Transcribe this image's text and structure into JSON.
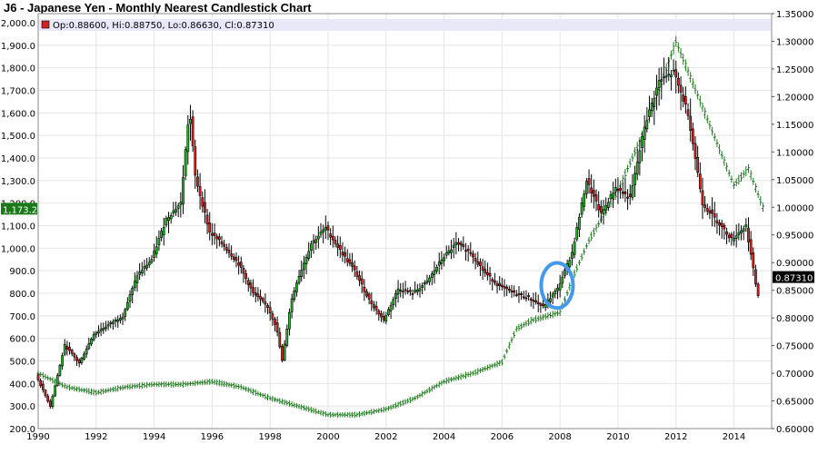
{
  "title": "J6 - Japanese Yen - Monthly Nearest Candlestick Chart",
  "legend": {
    "text": "Op:0.88600, Hi:0.88750, Lo:0.86630, Cl:0.87310",
    "swatch_color": "#cc2222"
  },
  "colors": {
    "up": "#22bb22",
    "down": "#dd2222",
    "overlay": "#1f7a1f",
    "highlight": "#4499ee",
    "left_marker_bg": "#1a7a1a",
    "right_marker_bg": "#000000"
  },
  "left_marker_label": "1,173.2",
  "right_marker_label": "0.87310",
  "chart_data": {
    "type": "candlestick",
    "x_ticks": [
      "1990",
      "1992",
      "1994",
      "1996",
      "1998",
      "2000",
      "2002",
      "2004",
      "2006",
      "2008",
      "2010",
      "2012",
      "2014"
    ],
    "x_range": [
      1990,
      2015.3
    ],
    "left_axis": {
      "ticks": [
        "200.0",
        "300.0",
        "400.0",
        "500.0",
        "600.0",
        "700.0",
        "800.0",
        "900.0",
        "1,000.0",
        "1,100.0",
        "1,200.0",
        "1,300.0",
        "1,400.0",
        "1,500.0",
        "1,600.0",
        "1,700.0",
        "1,800.0",
        "1,900.0",
        "2,000.0"
      ],
      "range": [
        200,
        2000
      ]
    },
    "right_axis": {
      "ticks": [
        "0.60000",
        "0.65000",
        "0.70000",
        "0.75000",
        "0.80000",
        "0.85000",
        "0.90000",
        "0.95000",
        "1.00000",
        "1.05000",
        "1.10000",
        "1.15000",
        "1.20000",
        "1.25000",
        "1.30000",
        "1.35000"
      ],
      "range": [
        0.6,
        1.35
      ]
    },
    "grid": true,
    "main_series": {
      "axis": "left",
      "x": [
        1990.0,
        1990.5,
        1991.0,
        1991.5,
        1992.0,
        1992.5,
        1993.0,
        1993.5,
        1994.0,
        1994.5,
        1995.0,
        1995.3,
        1995.5,
        1996.0,
        1996.5,
        1997.0,
        1997.5,
        1998.0,
        1998.3,
        1998.5,
        1998.8,
        1999.0,
        1999.5,
        2000.0,
        2000.5,
        2001.0,
        2001.5,
        2002.0,
        2002.5,
        2003.0,
        2003.5,
        2004.0,
        2004.5,
        2005.0,
        2005.5,
        2006.0,
        2006.5,
        2007.0,
        2007.5,
        2008.0,
        2008.5,
        2009.0,
        2009.5,
        2010.0,
        2010.5,
        2011.0,
        2011.5,
        2012.0,
        2012.5,
        2013.0,
        2013.5,
        2014.0,
        2014.5,
        2014.9
      ],
      "y": [
        440,
        300,
        570,
        490,
        620,
        660,
        700,
        880,
        950,
        1130,
        1200,
        1620,
        1320,
        1070,
        1010,
        930,
        800,
        740,
        650,
        500,
        760,
        850,
        1020,
        1090,
        990,
        900,
        770,
        680,
        820,
        800,
        850,
        950,
        1020,
        980,
        890,
        830,
        800,
        780,
        740,
        820,
        980,
        1300,
        1150,
        1270,
        1220,
        1540,
        1740,
        1780,
        1600,
        1200,
        1120,
        1040,
        1100,
        790
      ]
    },
    "overlay_series": {
      "axis": "right",
      "x": [
        1990.0,
        1991.0,
        1992.0,
        1993.0,
        1994.0,
        1995.0,
        1996.0,
        1997.0,
        1998.0,
        1999.0,
        2000.0,
        2001.0,
        2002.0,
        2003.0,
        2004.0,
        2005.0,
        2006.0,
        2006.5,
        2007.0,
        2008.0,
        2008.5,
        2009.0,
        2010.0,
        2011.0,
        2012.0,
        2013.0,
        2014.0,
        2014.5,
        2015.0
      ],
      "y": [
        0.7,
        0.675,
        0.665,
        0.675,
        0.68,
        0.68,
        0.685,
        0.675,
        0.655,
        0.64,
        0.625,
        0.625,
        0.635,
        0.655,
        0.685,
        0.7,
        0.72,
        0.78,
        0.795,
        0.81,
        0.88,
        0.94,
        1.03,
        1.15,
        1.3,
        1.17,
        1.04,
        1.07,
        1.0
      ]
    },
    "annotations": [
      {
        "type": "ellipse",
        "x_center": 2007.9,
        "y_center_left": 835,
        "x_radius": 0.55,
        "y_radius_left": 100
      }
    ]
  }
}
